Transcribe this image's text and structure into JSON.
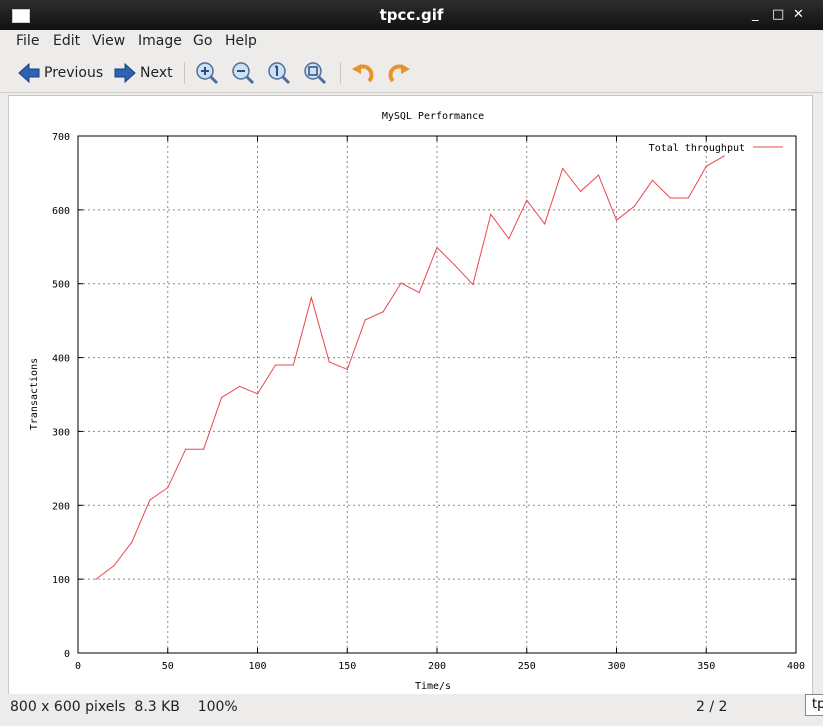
{
  "window": {
    "title": "tpcc.gif",
    "minimize": "_",
    "maximize": "□",
    "close": "✕"
  },
  "menu": [
    "File",
    "Edit",
    "View",
    "Image",
    "Go",
    "Help"
  ],
  "toolbar": {
    "previous_label": "Previous",
    "next_label": "Next",
    "icons": [
      "zoom-in-icon",
      "zoom-out-icon",
      "zoom-normal-icon",
      "zoom-fit-icon",
      "rotate-left-icon",
      "rotate-right-icon"
    ]
  },
  "status": {
    "info": "800 x 600 pixels  8.3 KB    100%",
    "page": "2 / 2",
    "tooltip": "tp"
  },
  "colors": {
    "line": "#e8474f",
    "grid": "#8a8a8a"
  },
  "chart_data": {
    "type": "line",
    "title": "MySQL Performance",
    "xlabel": "Time/s",
    "ylabel": "Transactions",
    "xlim": [
      0,
      400
    ],
    "ylim": [
      0,
      700
    ],
    "xticks": [
      0,
      50,
      100,
      150,
      200,
      250,
      300,
      350,
      400
    ],
    "yticks": [
      0,
      100,
      200,
      300,
      400,
      500,
      600,
      700
    ],
    "grid": true,
    "legend": "top-right",
    "series": [
      {
        "name": "Total throughput",
        "x": [
          10,
          20,
          30,
          40,
          50,
          60,
          70,
          80,
          90,
          100,
          110,
          120,
          130,
          140,
          150,
          160,
          170,
          180,
          190,
          200,
          210,
          220,
          230,
          240,
          250,
          260,
          270,
          280,
          290,
          300,
          310,
          320,
          330,
          340,
          350,
          360
        ],
        "y": [
          100,
          118,
          150,
          207,
          224,
          276,
          276,
          346,
          361,
          351,
          390,
          390,
          481,
          394,
          384,
          451,
          462,
          501,
          488,
          549,
          525,
          499,
          594,
          561,
          613,
          581,
          656,
          625,
          647,
          586,
          605,
          640,
          616,
          616,
          659,
          673
        ]
      }
    ]
  }
}
